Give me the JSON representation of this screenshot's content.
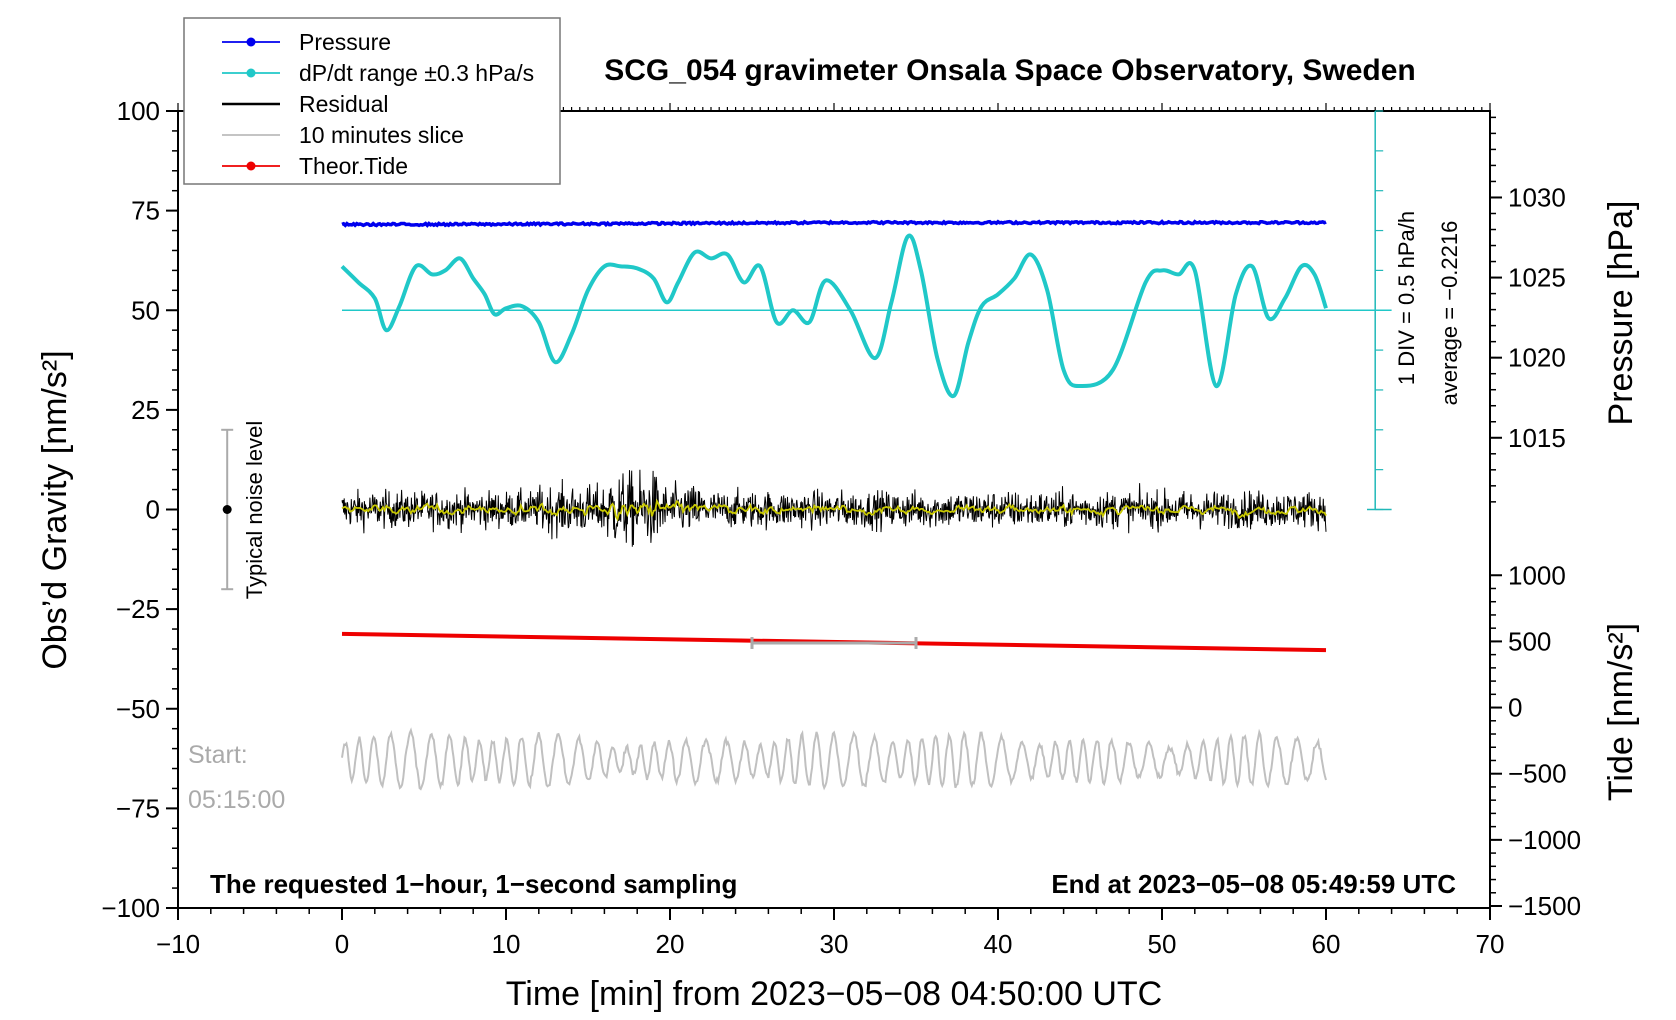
{
  "chart_data": {
    "type": "line",
    "title": "SCG_054 gravimeter Onsala Space Observatory, Sweden",
    "xlabel": "Time [min] from 2023−05−08 04:50:00 UTC",
    "ylabel_left": "Obs’d Gravity [nm/s²]",
    "ylabel_right_pressure": "Pressure [hPa]",
    "ylabel_right_tide": "Tide [nm/s²]",
    "xlim": [
      -10,
      70
    ],
    "ylim": [
      -100,
      100
    ],
    "x_ticks": [
      -10,
      0,
      10,
      20,
      30,
      40,
      50,
      60,
      70
    ],
    "x_tick_labels": [
      "−10",
      "0",
      "10",
      "20",
      "30",
      "40",
      "50",
      "60",
      "70"
    ],
    "y_ticks": [
      100,
      75,
      50,
      25,
      0,
      -25,
      -50,
      -75,
      -100
    ],
    "y_tick_labels": [
      "100",
      "75",
      "50",
      "25",
      "0",
      "−25",
      "−50",
      "−75",
      "−100"
    ],
    "pressure_axis": {
      "ticks": [
        1030,
        1025,
        1020,
        1015
      ],
      "tick_labels": [
        "1030",
        "1025",
        "1020",
        "1015"
      ],
      "gravity_equiv": [
        78.3,
        58.2,
        38.1,
        18.0
      ]
    },
    "tide_axis": {
      "ticks": [
        1000,
        500,
        0,
        -500,
        -1000,
        -1500
      ],
      "tick_labels": [
        "1000",
        "500",
        "0",
        "−500",
        "−1000",
        "−1500"
      ],
      "gravity_equiv": [
        -16.5,
        -33.1,
        -49.7,
        -66.3,
        -82.9,
        -99.5
      ]
    },
    "legend": [
      {
        "label": "Pressure",
        "color": "#0000ee",
        "marker": "dot"
      },
      {
        "label": "dP/dt range ±0.3 hPa/s",
        "color": "#20c8c8",
        "marker": "dot"
      },
      {
        "label": "Residual",
        "color": "#000000",
        "marker": "none"
      },
      {
        "label": "10 minutes slice",
        "color": "#bbbbbb",
        "marker": "none"
      },
      {
        "label": "Theor.Tide",
        "color": "#ee0000",
        "marker": "dot"
      }
    ],
    "series": [
      {
        "name": "Pressure",
        "color": "#0000ee",
        "x": [
          0,
          10,
          20,
          30,
          40,
          50,
          60
        ],
        "y": [
          71.5,
          71.6,
          71.8,
          72.0,
          72.0,
          72.0,
          72.0
        ]
      },
      {
        "name": "dP/dt",
        "color": "#20c8c8",
        "x": [
          0,
          1,
          2,
          2.7,
          3.5,
          4.5,
          5.5,
          6.3,
          7.2,
          8.0,
          8.7,
          9.3,
          10,
          11,
          12,
          13,
          14,
          15,
          16,
          17,
          18,
          19,
          19.8,
          20.5,
          21.5,
          22.5,
          23.5,
          24.5,
          25.5,
          26.5,
          27.5,
          28.5,
          29.5,
          31,
          32.5,
          33.5,
          34.5,
          35.3,
          36.3,
          37.3,
          38.2,
          39,
          40,
          41,
          42,
          43,
          44,
          45,
          47,
          49,
          50,
          51,
          52,
          53.3,
          54.5,
          55.5,
          56.5,
          57.5,
          58.5,
          59.3,
          60
        ],
        "y": [
          61,
          57,
          53,
          45,
          51,
          61,
          59,
          60,
          63,
          58,
          54,
          49,
          50.5,
          51,
          47,
          37,
          44,
          55,
          61,
          61,
          60.5,
          58,
          52,
          57,
          64.5,
          63,
          64,
          57,
          61,
          47,
          50,
          47,
          57.5,
          50,
          38,
          52,
          68.5,
          60,
          38,
          28.5,
          42,
          51,
          54,
          58,
          64,
          55,
          35,
          31,
          35,
          57,
          60,
          59,
          60,
          31,
          54,
          61,
          48,
          53,
          61,
          59,
          50.5
        ]
      },
      {
        "name": "Theor.Tide",
        "color": "#ee0000",
        "x": [
          0,
          60
        ],
        "y": [
          -31.2,
          -35.3
        ]
      }
    ],
    "dPdt_baseline": 50,
    "slice_start_label": "Start:",
    "slice_start_time": "05:15:00",
    "noise_bar_label": "Typical noise level",
    "noise_bar_range": [
      -20,
      20
    ],
    "annotation_div": "1 DIV = 0.5 hPa/h",
    "annotation_avg": "average = −0.2216",
    "footer_left": "The requested 1−hour, 1−second sampling",
    "footer_right": "End at 2023−05−08 05:49:59 UTC"
  }
}
